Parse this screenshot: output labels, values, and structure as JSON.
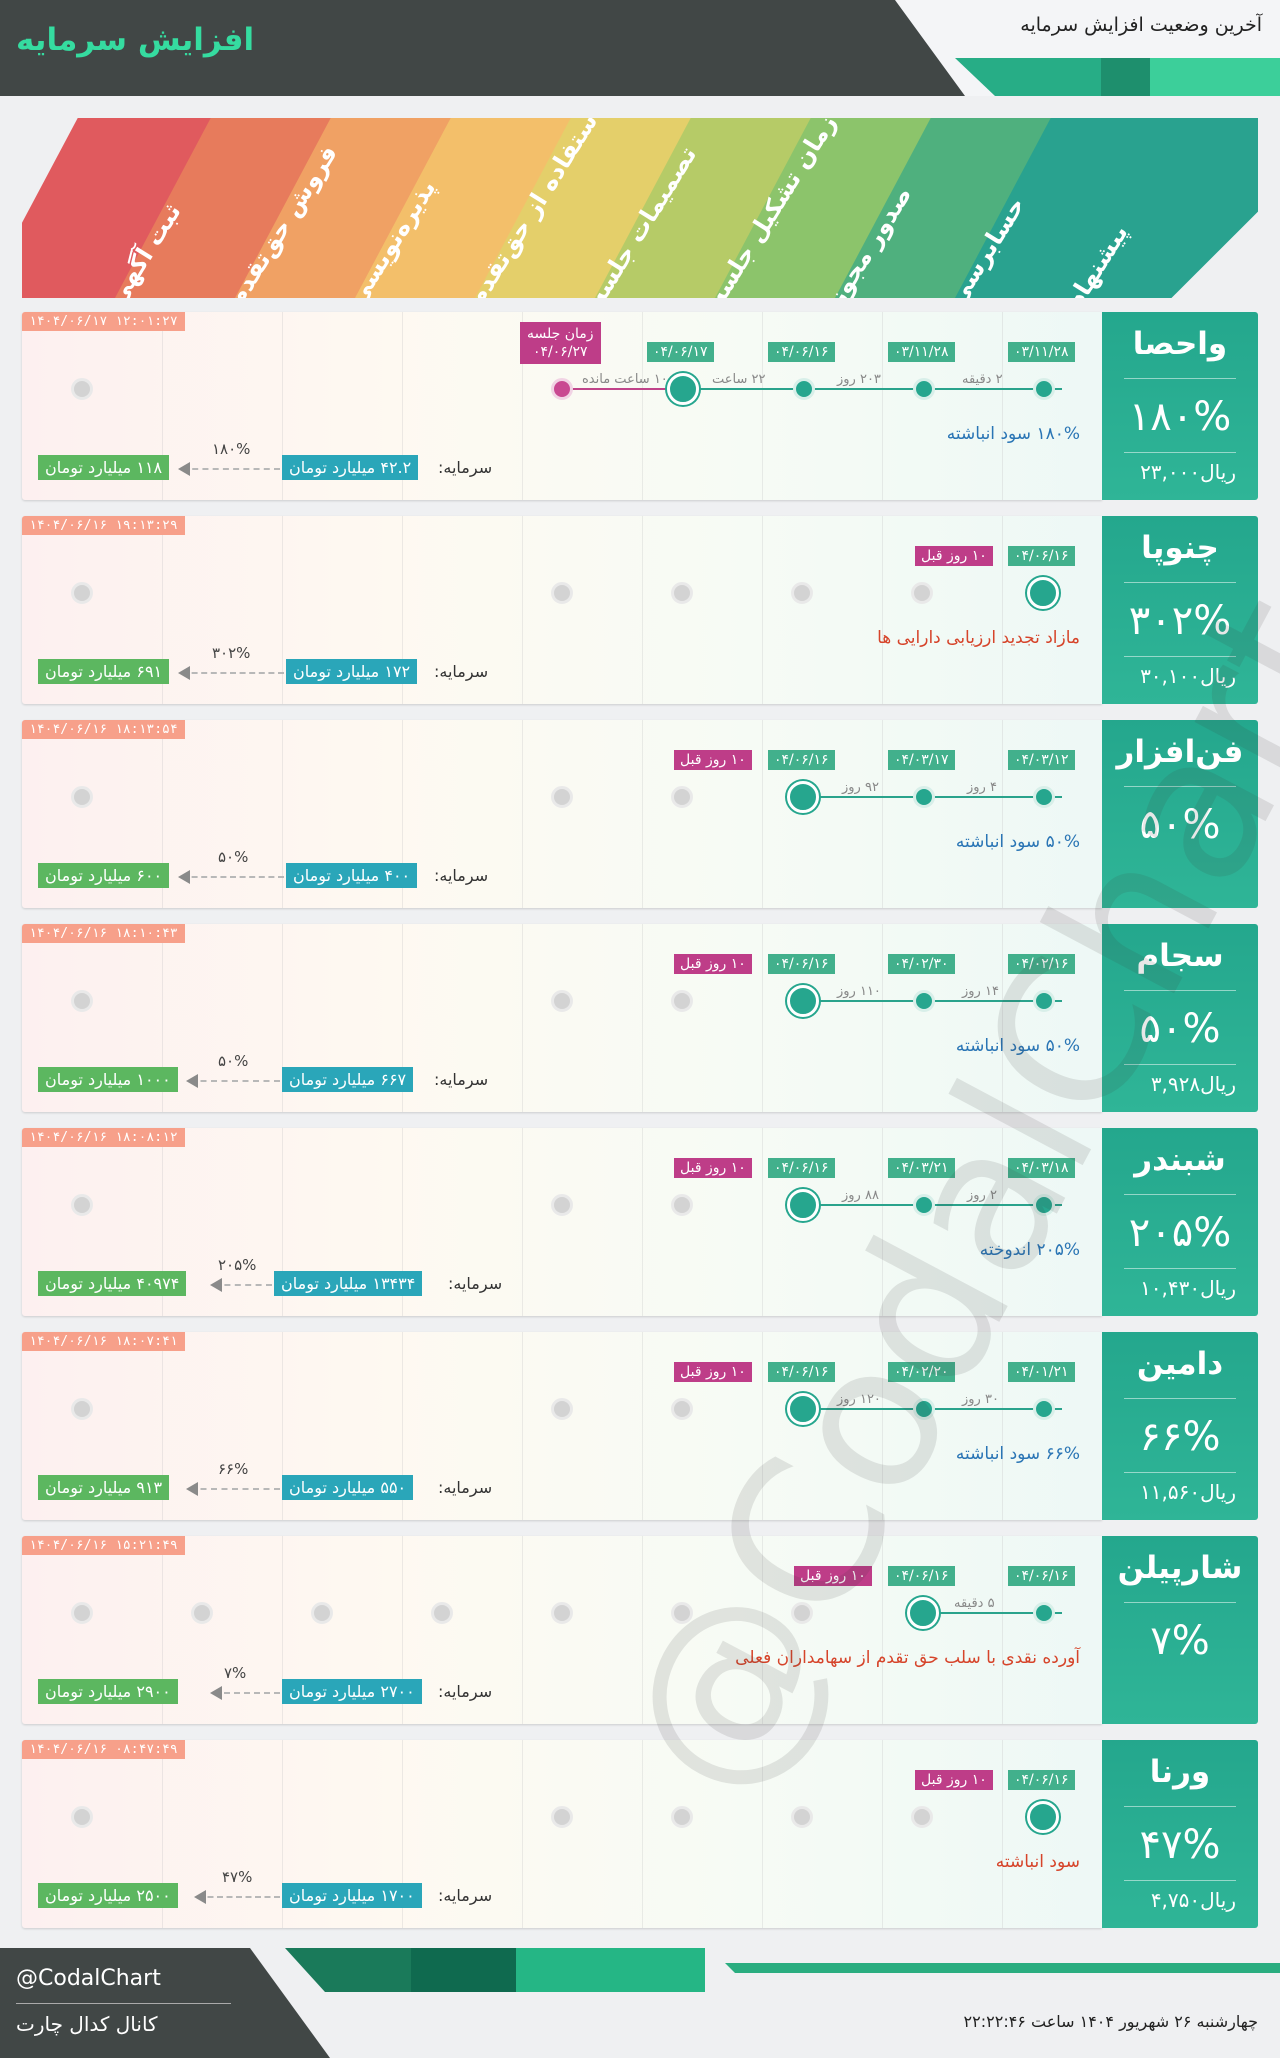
{
  "header": {
    "title": "افزایش سرمایه",
    "subtitle": "آخرین وضعیت افزایش سرمایه"
  },
  "stages": [
    {
      "label": "ثبت آگهی",
      "color": "#e05a5e"
    },
    {
      "label": "فروش حق‌تقدم",
      "color": "#e77b5c"
    },
    {
      "label": "پذیره‌نویسی",
      "color": "#f0a164"
    },
    {
      "label": "استفاده از حق‌تقدم",
      "color": "#f3bf6a"
    },
    {
      "label": "تصمیمات جلسه",
      "color": "#e4cf6a"
    },
    {
      "label": "زمان تشکیل جلسه",
      "color": "#b6cb67"
    },
    {
      "label": "صدور مجوز",
      "color": "#8cc46b"
    },
    {
      "label": "حسابرسی",
      "color": "#4fb07e"
    },
    {
      "label": "پیشنهاد",
      "color": "#29a28f"
    }
  ],
  "rows": [
    {
      "name": "واحصا",
      "percent": "۱۸۰%",
      "price": "۲۳,۰۰۰",
      "price_unit": "ریال",
      "timestamp": "۱۴۰۴/۰۶/۱۷ ۱۲:۰۱:۲۷",
      "dates": [
        "۰۳/۱۱/۲۸",
        "۰۳/۱۱/۲۸",
        "۰۴/۰۶/۱۶",
        "۰۴/۰۶/۱۷"
      ],
      "gaps": [
        "۲ دقیقه",
        "۲۰۳ روز",
        "۲۲ ساعت",
        "۱۰ ساعت مانده"
      ],
      "meeting_label": "زمان جلسه",
      "meeting_date": "۰۴/۰۶/۲۷",
      "note": "۱۸۰% سود انباشته",
      "capital_label": "سرمایه:",
      "capital_old": "۴۲.۲ میلیارد تومان",
      "capital_pct": "۱۸۰%",
      "capital_new": "۱۱۸ میلیارد تومان"
    },
    {
      "name": "چنوپا",
      "percent": "۳۰۲%",
      "price": "۳۰,۱۰۰",
      "price_unit": "ریال",
      "timestamp": "۱۴۰۴/۰۶/۱۶ ۱۹:۱۳:۲۹",
      "dates": [
        "۰۴/۰۶/۱۶"
      ],
      "ago": "۱۰ روز قبل",
      "note": "مازاد تجدید ارزیابی دارایی ها",
      "capital_label": "سرمایه:",
      "capital_old": "۱۷۲ میلیارد تومان",
      "capital_pct": "۳۰۲%",
      "capital_new": "۶۹۱ میلیارد تومان"
    },
    {
      "name": "فن‌افزار",
      "percent": "۵۰%",
      "timestamp": "۱۴۰۴/۰۶/۱۶ ۱۸:۱۳:۵۴",
      "dates": [
        "۰۴/۰۳/۱۲",
        "۰۴/۰۳/۱۷",
        "۰۴/۰۶/۱۶"
      ],
      "gaps": [
        "۴ روز",
        "۹۲ روز"
      ],
      "ago": "۱۰ روز قبل",
      "note": "۵۰% سود انباشته",
      "capital_label": "سرمایه:",
      "capital_old": "۴۰۰ میلیارد تومان",
      "capital_pct": "۵۰%",
      "capital_new": "۶۰۰ میلیارد تومان"
    },
    {
      "name": "سجام",
      "percent": "۵۰%",
      "price": "۳,۹۲۸",
      "price_unit": "ریال",
      "timestamp": "۱۴۰۴/۰۶/۱۶ ۱۸:۱۰:۴۳",
      "dates": [
        "۰۴/۰۲/۱۶",
        "۰۴/۰۲/۳۰",
        "۰۴/۰۶/۱۶"
      ],
      "gaps": [
        "۱۴ روز",
        "۱۱۰ روز"
      ],
      "ago": "۱۰ روز قبل",
      "note": "۵۰% سود انباشته",
      "capital_label": "سرمایه:",
      "capital_old": "۶۶۷ میلیارد تومان",
      "capital_pct": "۵۰%",
      "capital_new": "۱۰۰۰ میلیارد تومان"
    },
    {
      "name": "شبندر",
      "percent": "۲۰۵%",
      "price": "۱۰,۴۳۰",
      "price_unit": "ریال",
      "timestamp": "۱۴۰۴/۰۶/۱۶ ۱۸:۰۸:۱۲",
      "dates": [
        "۰۴/۰۳/۱۸",
        "۰۴/۰۳/۲۱",
        "۰۴/۰۶/۱۶"
      ],
      "gaps": [
        "۲ روز",
        "۸۸ روز"
      ],
      "ago": "۱۰ روز قبل",
      "note": "۲۰۵% اندوخته",
      "capital_label": "سرمایه:",
      "capital_old": "۱۳۴۳۴ میلیارد تومان",
      "capital_pct": "۲۰۵%",
      "capital_new": "۴۰۹۷۴ میلیارد تومان"
    },
    {
      "name": "دامین",
      "percent": "۶۶%",
      "price": "۱۱,۵۶۰",
      "price_unit": "ریال",
      "timestamp": "۱۴۰۴/۰۶/۱۶ ۱۸:۰۷:۴۱",
      "dates": [
        "۰۴/۰۱/۲۱",
        "۰۴/۰۲/۲۰",
        "۰۴/۰۶/۱۶"
      ],
      "gaps": [
        "۳۰ روز",
        "۱۲۰ روز"
      ],
      "ago": "۱۰ روز قبل",
      "note": "۶۶% سود انباشته",
      "capital_label": "سرمایه:",
      "capital_old": "۵۵۰ میلیارد تومان",
      "capital_pct": "۶۶%",
      "capital_new": "۹۱۳ میلیارد تومان"
    },
    {
      "name": "شارپیلن",
      "percent": "۷%",
      "timestamp": "۱۴۰۴/۰۶/۱۶ ۱۵:۲۱:۴۹",
      "dates": [
        "۰۴/۰۶/۱۶",
        "۰۴/۰۶/۱۶"
      ],
      "gaps": [
        "۵ دقیقه"
      ],
      "ago": "۱۰ روز قبل",
      "note": "آورده نقدی با سلب حق تقدم از سهامداران فعلی",
      "capital_label": "سرمایه:",
      "capital_old": "۲۷۰۰ میلیارد تومان",
      "capital_pct": "۷%",
      "capital_new": "۲۹۰۰ میلیارد تومان"
    },
    {
      "name": "ورنا",
      "percent": "۴۷%",
      "price": "۴,۷۵۰",
      "price_unit": "ریال",
      "timestamp": "۱۴۰۴/۰۶/۱۶ ۰۸:۴۷:۴۹",
      "dates": [
        "۰۴/۰۶/۱۶"
      ],
      "ago": "۱۰ روز قبل",
      "note": "سود انباشته",
      "capital_label": "سرمایه:",
      "capital_old": "۱۷۰۰ میلیارد تومان",
      "capital_pct": "۴۷%",
      "capital_new": "۲۵۰۰ میلیارد تومان"
    }
  ],
  "watermark": "@CodalChart",
  "footer": {
    "handle": "@CodalChart",
    "channel": "کانال کدال چارت",
    "datetime": "چهارشنبه ۲۶ شهریور ۱۴۰۴ ساعت ۲۲:۲۲:۴۶"
  }
}
